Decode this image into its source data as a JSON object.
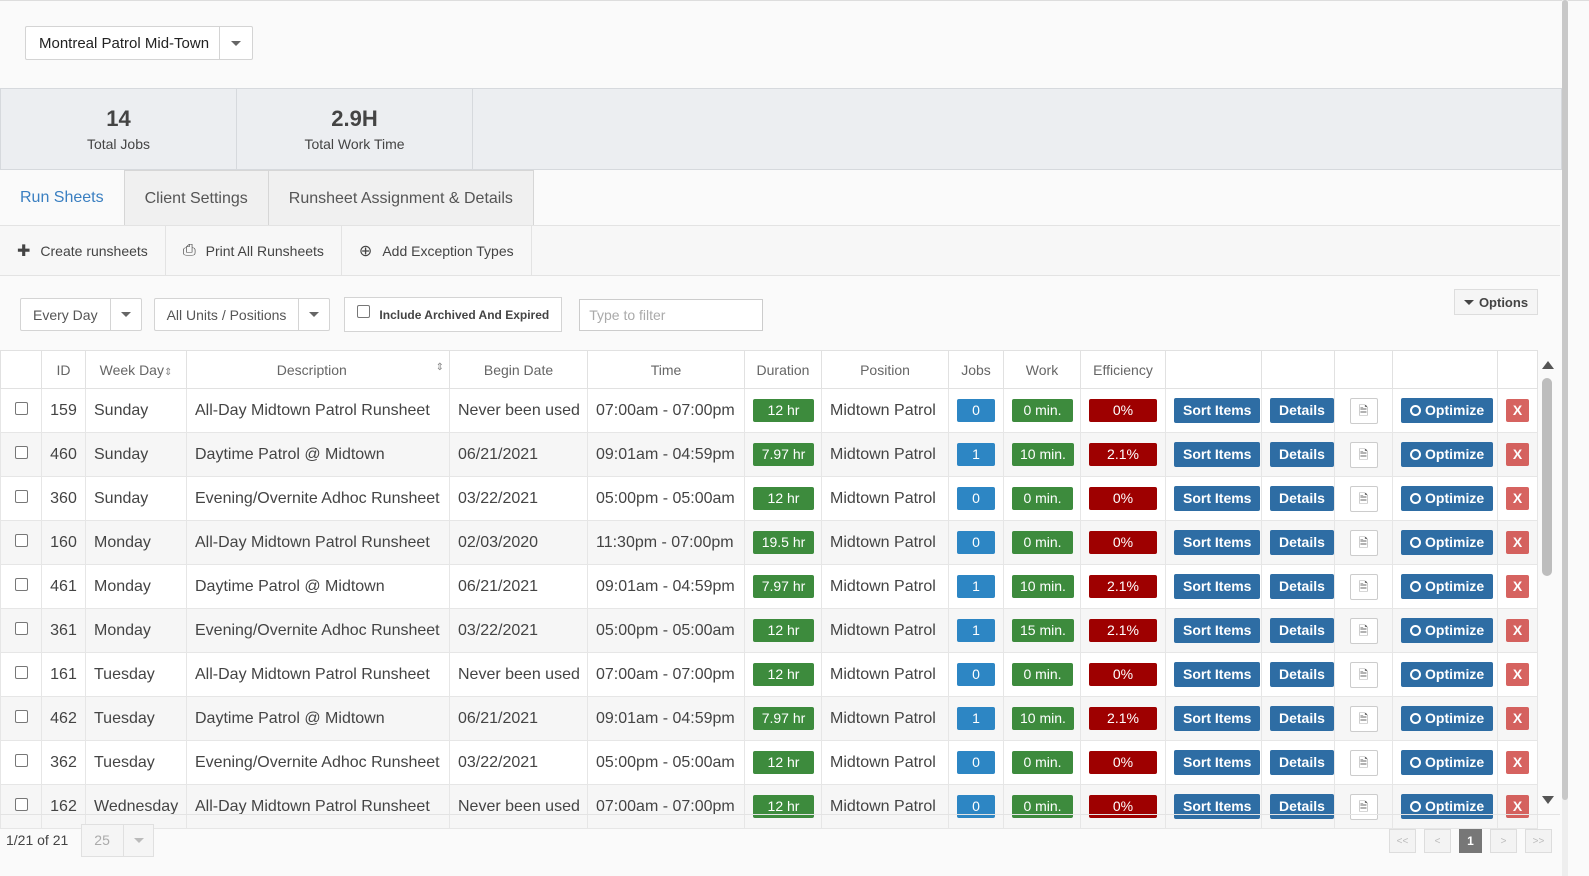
{
  "site_selector": {
    "value": "Montreal Patrol Mid-Town"
  },
  "stats": [
    {
      "value": "14",
      "label": "Total Jobs"
    },
    {
      "value": "2.9H",
      "label": "Total Work Time"
    }
  ],
  "tabs": [
    {
      "label": "Run Sheets",
      "active": true
    },
    {
      "label": "Client Settings",
      "active": false
    },
    {
      "label": "Runsheet Assignment & Details",
      "active": false
    }
  ],
  "toolbar": {
    "create": "Create runsheets",
    "print": "Print All Runsheets",
    "exceptions": "Add Exception Types"
  },
  "filters": {
    "day": "Every Day",
    "units": "All Units / Positions",
    "archived_label": "Include Archived And Expired",
    "filter_placeholder": "Type to filter",
    "options": "Options"
  },
  "table": {
    "headers": {
      "id": "ID",
      "weekday": "Week Day",
      "description": "Description",
      "begin": "Begin Date",
      "time": "Time",
      "duration": "Duration",
      "position": "Position",
      "jobs": "Jobs",
      "work": "Work",
      "efficiency": "Efficiency"
    },
    "buttons": {
      "sort": "Sort Items",
      "details": "Details",
      "optimize": "Optimize",
      "delete": "X"
    },
    "rows": [
      {
        "id": "159",
        "day": "Sunday",
        "desc": "All-Day Midtown Patrol Runsheet",
        "begin": "Never been used",
        "time": "07:00am - 07:00pm",
        "duration": "12 hr",
        "position": "Midtown Patrol",
        "jobs": "0",
        "work": "0 min.",
        "eff": "0%"
      },
      {
        "id": "460",
        "day": "Sunday",
        "desc": "Daytime Patrol @ Midtown",
        "begin": "06/21/2021",
        "time": "09:01am - 04:59pm",
        "duration": "7.97 hr",
        "position": "Midtown Patrol",
        "jobs": "1",
        "work": "10 min.",
        "eff": "2.1%"
      },
      {
        "id": "360",
        "day": "Sunday",
        "desc": "Evening/Overnite Adhoc Runsheet",
        "begin": "03/22/2021",
        "time": "05:00pm - 05:00am",
        "duration": "12 hr",
        "position": "Midtown Patrol",
        "jobs": "0",
        "work": "0 min.",
        "eff": "0%"
      },
      {
        "id": "160",
        "day": "Monday",
        "desc": "All-Day Midtown Patrol Runsheet",
        "begin": "02/03/2020",
        "time": "11:30pm - 07:00pm",
        "duration": "19.5 hr",
        "position": "Midtown Patrol",
        "jobs": "0",
        "work": "0 min.",
        "eff": "0%"
      },
      {
        "id": "461",
        "day": "Monday",
        "desc": "Daytime Patrol @ Midtown",
        "begin": "06/21/2021",
        "time": "09:01am - 04:59pm",
        "duration": "7.97 hr",
        "position": "Midtown Patrol",
        "jobs": "1",
        "work": "10 min.",
        "eff": "2.1%"
      },
      {
        "id": "361",
        "day": "Monday",
        "desc": "Evening/Overnite Adhoc Runsheet",
        "begin": "03/22/2021",
        "time": "05:00pm - 05:00am",
        "duration": "12 hr",
        "position": "Midtown Patrol",
        "jobs": "1",
        "work": "15 min.",
        "eff": "2.1%"
      },
      {
        "id": "161",
        "day": "Tuesday",
        "desc": "All-Day Midtown Patrol Runsheet",
        "begin": "Never been used",
        "time": "07:00am - 07:00pm",
        "duration": "12 hr",
        "position": "Midtown Patrol",
        "jobs": "0",
        "work": "0 min.",
        "eff": "0%"
      },
      {
        "id": "462",
        "day": "Tuesday",
        "desc": "Daytime Patrol @ Midtown",
        "begin": "06/21/2021",
        "time": "09:01am - 04:59pm",
        "duration": "7.97 hr",
        "position": "Midtown Patrol",
        "jobs": "1",
        "work": "10 min.",
        "eff": "2.1%"
      },
      {
        "id": "362",
        "day": "Tuesday",
        "desc": "Evening/Overnite Adhoc Runsheet",
        "begin": "03/22/2021",
        "time": "05:00pm - 05:00am",
        "duration": "12 hr",
        "position": "Midtown Patrol",
        "jobs": "0",
        "work": "0 min.",
        "eff": "0%"
      },
      {
        "id": "162",
        "day": "Wednesday",
        "desc": "All-Day Midtown Patrol Runsheet",
        "begin": "Never been used",
        "time": "07:00am - 07:00pm",
        "duration": "12 hr",
        "position": "Midtown Patrol",
        "jobs": "0",
        "work": "0 min.",
        "eff": "0%"
      }
    ]
  },
  "pager": {
    "info": "1/21 of 21",
    "page_size": "25",
    "current_page": "1",
    "first": "<<",
    "prev": "<",
    "next": ">",
    "last": ">>"
  },
  "colors": {
    "accent": "#3a7fc1",
    "green": "#3d8b3d",
    "blue": "#2d86c4",
    "red": "#9e0000",
    "button": "#2e6da4"
  }
}
